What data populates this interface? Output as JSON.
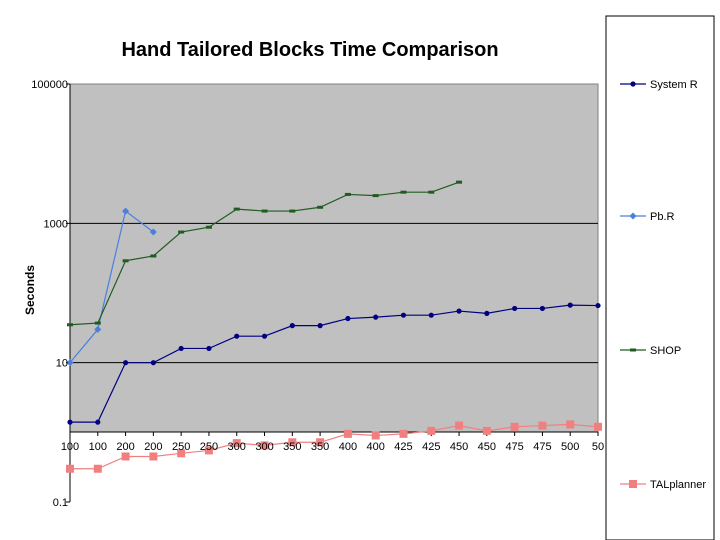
{
  "chart_data": {
    "type": "line",
    "title": "Hand Tailored Blocks Time Comparison",
    "xlabel": "",
    "ylabel": "Seconds",
    "y_scale": "log",
    "ylim": [
      0.1,
      100000
    ],
    "y_ticks": [
      {
        "value": 100000,
        "label": "100000"
      },
      {
        "value": 1000,
        "label": "1000"
      },
      {
        "value": 10,
        "label": "10"
      },
      {
        "value": 0.1,
        "label": "0.1"
      }
    ],
    "categories": [
      "100",
      "100",
      "200",
      "200",
      "250",
      "250",
      "300",
      "300",
      "350",
      "350",
      "400",
      "400",
      "425",
      "425",
      "450",
      "450",
      "475",
      "475",
      "500",
      "50"
    ],
    "grid": true,
    "legend_position": "right",
    "colors": {
      "plot_bg": "#c0c0c0",
      "system_r": "#000080",
      "pbr": "#4a7fe0",
      "shop": "#1f5c1f",
      "talplanner": "#f08080"
    },
    "series": [
      {
        "name": "System R",
        "color_key": "system_r",
        "marker": "circle",
        "values": [
          1.4,
          1.4,
          10,
          10,
          16,
          16,
          24,
          24,
          34,
          34,
          43,
          45,
          48,
          48,
          55,
          51,
          60,
          60,
          67,
          66
        ]
      },
      {
        "name": "Pb.R",
        "color_key": "pbr",
        "marker": "diamond",
        "values": [
          10,
          30,
          1500,
          750,
          null,
          null,
          null,
          null,
          null,
          null,
          null,
          null,
          null,
          null,
          null,
          null,
          null,
          null,
          null,
          null
        ]
      },
      {
        "name": "SHOP",
        "color_key": "shop",
        "marker": "dash",
        "values": [
          35,
          37,
          290,
          340,
          750,
          880,
          1600,
          1500,
          1500,
          1700,
          2600,
          2500,
          2800,
          2800,
          3900,
          null,
          null,
          null,
          null,
          null
        ]
      },
      {
        "name": "TALplanner",
        "color_key": "talplanner",
        "marker": "square",
        "values": [
          0.3,
          0.3,
          0.45,
          0.45,
          0.5,
          0.55,
          0.7,
          0.65,
          0.72,
          0.72,
          0.95,
          0.9,
          0.95,
          1.05,
          1.25,
          1.05,
          1.2,
          1.25,
          1.3,
          1.2
        ]
      }
    ]
  }
}
